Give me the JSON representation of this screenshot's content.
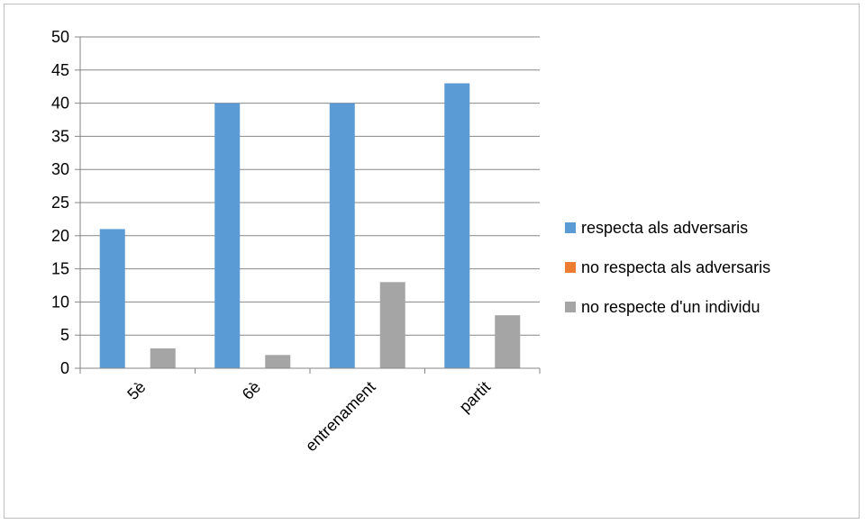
{
  "chart_data": {
    "type": "bar",
    "title": "",
    "xlabel": "",
    "ylabel": "",
    "categories": [
      "5è",
      "6è",
      "entrenament",
      "partit"
    ],
    "series": [
      {
        "name": "respecta als adversaris",
        "values": [
          21,
          40,
          40,
          43
        ],
        "color": "#5b9bd5"
      },
      {
        "name": "no respecta als adversaris",
        "values": [
          0,
          0,
          0,
          0
        ],
        "color": "#ed7d31"
      },
      {
        "name": "no respecte d'un individu",
        "values": [
          3,
          2,
          13,
          8
        ],
        "color": "#a5a5a5"
      }
    ],
    "ylim": [
      0,
      50
    ],
    "yticks": [
      0,
      5,
      10,
      15,
      20,
      25,
      30,
      35,
      40,
      45,
      50
    ],
    "grid": true,
    "legend_position": "right"
  }
}
